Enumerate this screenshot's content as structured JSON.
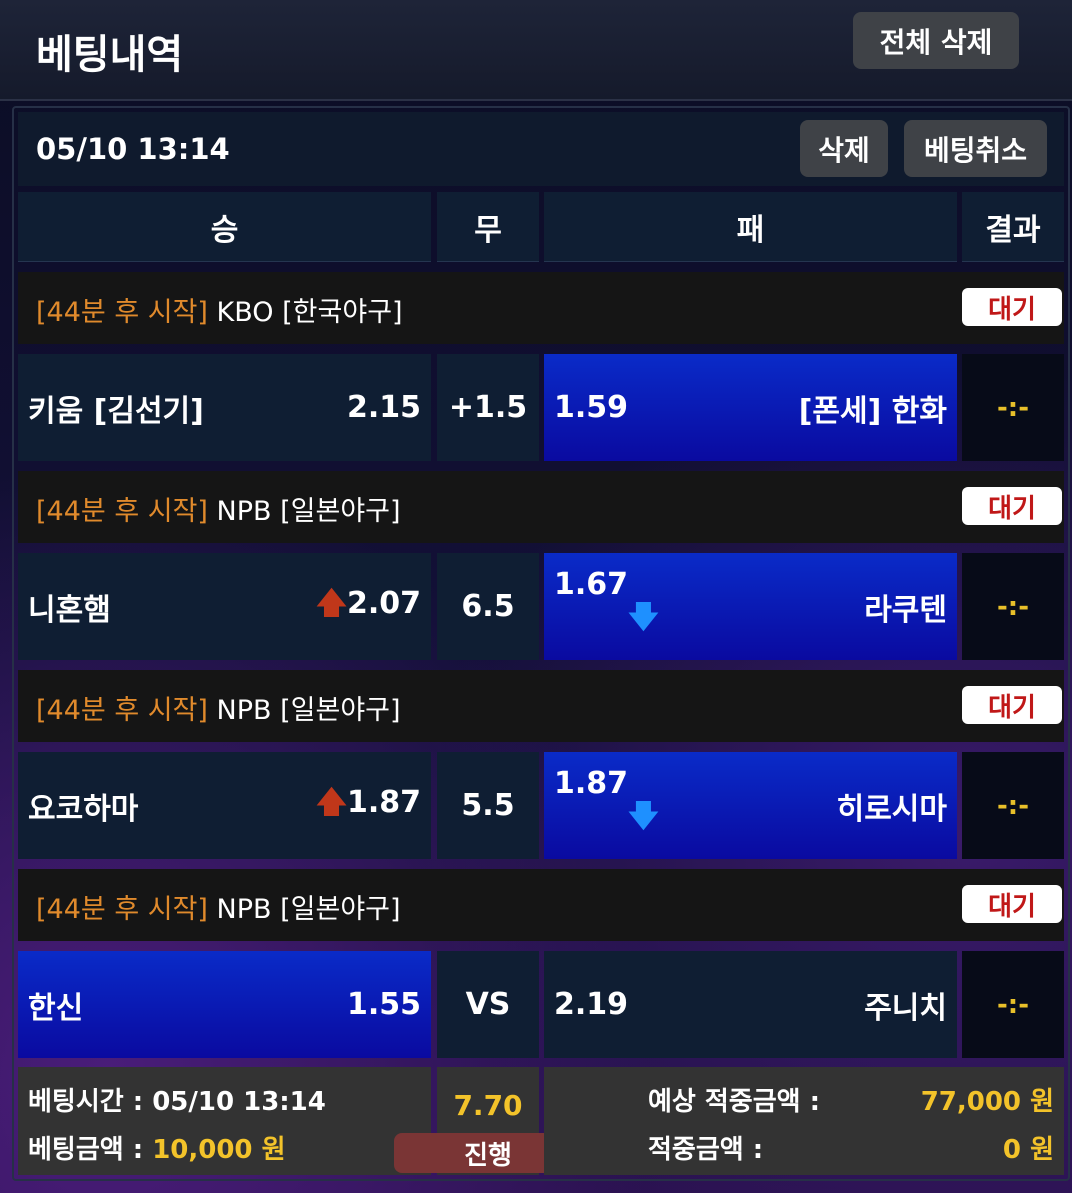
{
  "header": {
    "title": "베팅내역",
    "delete_all": "전체 삭제"
  },
  "bet": {
    "date": "05/10 13:14",
    "delete": "삭제",
    "cancel": "베팅취소"
  },
  "columns": [
    "승",
    "무",
    "패",
    "결과"
  ],
  "games": [
    {
      "status": "[44분 후 시작]",
      "league": "KBO [한국야구]",
      "badge": "대기",
      "home": "키움 [김선기]",
      "home_odds": "2.15",
      "home_trend": "",
      "mid": "+1.5",
      "away_odds": "1.59",
      "away_trend": "",
      "away": "[폰세] 한화",
      "selected": "away",
      "score": "-:-"
    },
    {
      "status": "[44분 후 시작]",
      "league": "NPB [일본야구]",
      "badge": "대기",
      "home": "니혼햄",
      "home_odds": "2.07",
      "home_trend": "up",
      "mid": "6.5",
      "away_odds": "1.67",
      "away_trend": "down",
      "away": "라쿠텐",
      "selected": "away",
      "score": "-:-"
    },
    {
      "status": "[44분 후 시작]",
      "league": "NPB [일본야구]",
      "badge": "대기",
      "home": "요코하마",
      "home_odds": "1.87",
      "home_trend": "up",
      "mid": "5.5",
      "away_odds": "1.87",
      "away_trend": "down",
      "away": "히로시마",
      "selected": "away",
      "score": "-:-"
    },
    {
      "status": "[44분 후 시작]",
      "league": "NPB [일본야구]",
      "badge": "대기",
      "home": "한신",
      "home_odds": "1.55",
      "home_trend": "",
      "mid": "VS",
      "away_odds": "2.19",
      "away_trend": "",
      "away": "주니치",
      "selected": "home",
      "score": "-:-"
    }
  ],
  "footer": {
    "time_label": "베팅시간 : ",
    "time": "05/10 13:14",
    "amount_label": "베팅금액 : ",
    "amount": "10,000 원",
    "total_odds": "7.70",
    "state": "진행",
    "expected_label": "예상 적중금액 :",
    "expected": "77,000 원",
    "won_label": "적중금액 :",
    "won": "0 원"
  },
  "colors": {
    "accent_yellow": "#f3c32a",
    "status_orange": "#e08a2c",
    "selected_blue": "#0a2bc8",
    "badge_red": "#c01818"
  }
}
